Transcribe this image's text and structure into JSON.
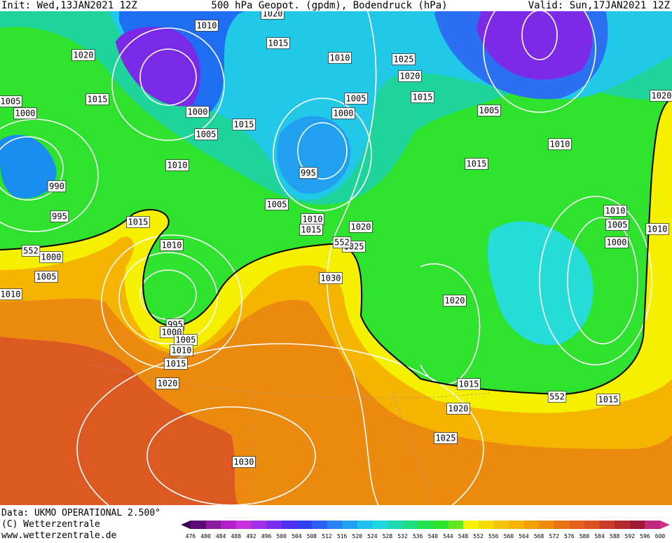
{
  "header": {
    "init": "Init: Wed,13JAN2021 12Z",
    "title": "500 hPa Geopot. (gpdm), Bodendruck (hPa)",
    "valid": "Valid: Sun,17JAN2021 12Z"
  },
  "footer": {
    "data": "Data: UKMO OPERATIONAL 2.500°",
    "copyright": "(C) Wetterzentrale",
    "url": "www.wetterzentrale.de"
  },
  "legend": {
    "labels": [
      476,
      480,
      484,
      488,
      492,
      496,
      500,
      504,
      508,
      512,
      516,
      520,
      524,
      528,
      532,
      536,
      540,
      544,
      548,
      552,
      556,
      560,
      564,
      568,
      572,
      576,
      580,
      584,
      588,
      592,
      596,
      600
    ]
  },
  "contour_labels": [
    "552",
    "552",
    "552"
  ],
  "isobar_labels": [
    "1020",
    "1010",
    "1015",
    "1020",
    "1010",
    "1025",
    "1020",
    "1015",
    "1005",
    "1000",
    "1005",
    "1015",
    "1005",
    "1000",
    "1000",
    "1015",
    "1005",
    "1010",
    "1015",
    "1010",
    "995",
    "990",
    "1005",
    "995",
    "1015",
    "1010",
    "1015",
    "1020",
    "1010",
    "1005",
    "1010",
    "1000",
    "1010",
    "1025",
    "1000",
    "1005",
    "1030",
    "1010",
    "1020",
    "995",
    "1000",
    "1005",
    "1010",
    "1015",
    "1015",
    "1020",
    "1015",
    "1020",
    "1025",
    "1030",
    "1020"
  ]
}
